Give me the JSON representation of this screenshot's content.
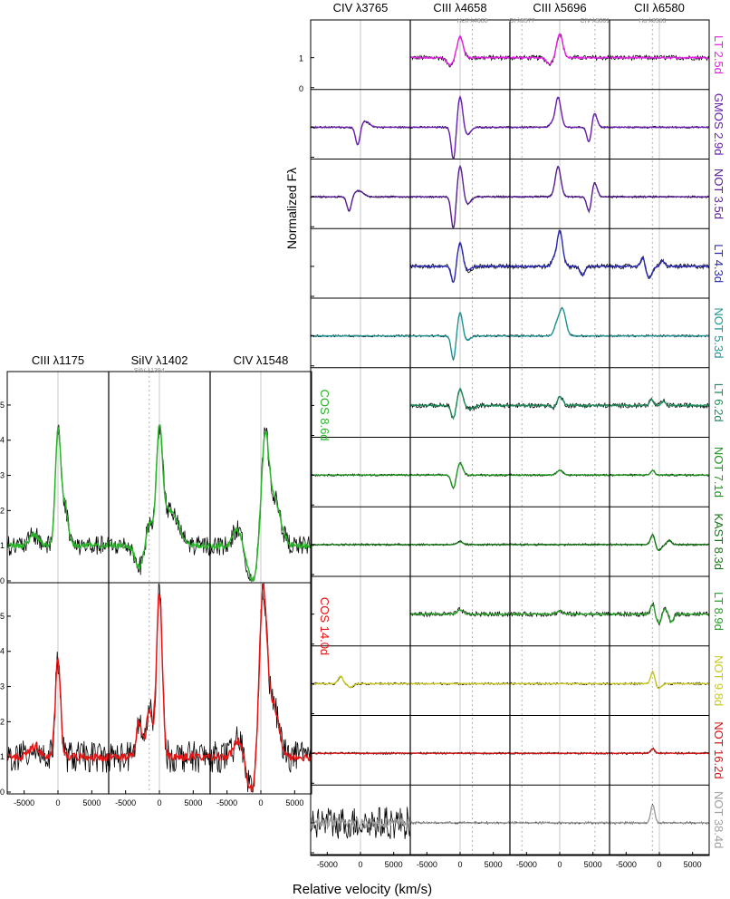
{
  "figure": {
    "xlabel": "Relative velocity (km/s)",
    "ylabel": "Normalized Fλ"
  },
  "chart_data": {
    "type": "line",
    "xlabel": "Relative velocity (km/s)",
    "ylabel": "Normalized Fλ",
    "xlim": [
      -7500,
      7500
    ],
    "xticks": [
      -5000,
      0,
      5000
    ],
    "optical": {
      "columns": [
        {
          "line": "CIV λ3765",
          "marker": ""
        },
        {
          "line": "CIII λ4658",
          "marker": "HeII λ4686"
        },
        {
          "line": "CIII λ5696",
          "marker": "OI λ5577",
          "marker2": "CIV λ5801"
        },
        {
          "line": "CII λ6580",
          "marker": "Hα λ6563"
        }
      ],
      "yticks": [
        0,
        1
      ],
      "rows": [
        {
          "label": "LT 2.5d",
          "color": "#e61ee6",
          "cols": [
            1,
            2,
            3
          ],
          "feat": [
            [],
            [
              [
                0,
                0.7,
                450
              ],
              [
                -1500,
                -0.25,
                500
              ]
            ],
            [
              [
                0,
                0.8,
                450
              ],
              [
                -1500,
                -0.2,
                500
              ]
            ],
            []
          ]
        },
        {
          "label": "GMOS 2.9d",
          "color": "#6a1fb4",
          "cols": [
            0,
            1,
            2,
            3
          ],
          "feat": [
            [
              [
                -400,
                -0.65,
                350
              ],
              [
                600,
                0.2,
                700
              ]
            ],
            [
              [
                0,
                1.05,
                380
              ],
              [
                -1000,
                -1.1,
                330
              ],
              [
                1100,
                -0.25,
                500
              ]
            ],
            [
              [
                -250,
                1.0,
                430
              ],
              [
                -1300,
                0.1,
                300
              ],
              [
                4450,
                -0.55,
                350
              ],
              [
                5200,
                0.5,
                400
              ]
            ],
            []
          ]
        },
        {
          "label": "NOT 3.5d",
          "color": "#5a1f96",
          "cols": [
            0,
            1,
            2,
            3
          ],
          "feat": [
            [
              [
                -1700,
                -0.5,
                330
              ],
              [
                -300,
                0.2,
                700
              ]
            ],
            [
              [
                0,
                1.05,
                400
              ],
              [
                -1000,
                -1.1,
                330
              ],
              [
                1100,
                -0.25,
                500
              ]
            ],
            [
              [
                -250,
                1.0,
                430
              ],
              [
                4450,
                -0.55,
                350
              ],
              [
                5200,
                0.5,
                400
              ]
            ],
            []
          ]
        },
        {
          "label": "LT 4.3d",
          "color": "#2a2ab4",
          "cols": [
            1,
            2,
            3
          ],
          "feat": [
            [],
            [
              [
                0,
                0.8,
                400
              ],
              [
                -1000,
                -0.55,
                330
              ],
              [
                1100,
                -0.15,
                500
              ]
            ],
            [
              [
                0,
                1.2,
                430
              ],
              [
                -1000,
                0.2,
                300
              ],
              [
                3400,
                -0.3,
                350
              ]
            ],
            [
              [
                -2500,
                0.3,
                300
              ],
              [
                -1500,
                -0.4,
                400
              ],
              [
                500,
                0.2,
                300
              ]
            ]
          ]
        },
        {
          "label": "NOT 5.3d",
          "color": "#1e9696",
          "cols": [
            0,
            1,
            2,
            3
          ],
          "feat": [
            [],
            [
              [
                0,
                0.8,
                380
              ],
              [
                -1000,
                -0.8,
                330
              ],
              [
                1000,
                -0.15,
                500
              ]
            ],
            [
              [
                400,
                0.9,
                500
              ],
              [
                -500,
                0.3,
                400
              ]
            ],
            []
          ]
        },
        {
          "label": "LT 6.2d",
          "color": "#1e8c5a",
          "cols": [
            1,
            2,
            3
          ],
          "feat": [
            [],
            [
              [
                0,
                0.55,
                400
              ],
              [
                -1000,
                -0.45,
                330
              ],
              [
                1500,
                -0.12,
                600
              ]
            ],
            [
              [
                0,
                0.3,
                450
              ],
              [
                -800,
                -0.1,
                400
              ]
            ],
            [
              [
                -1200,
                0.2,
                300
              ],
              [
                600,
                0.15,
                300
              ]
            ]
          ]
        },
        {
          "label": "NOT 7.1d",
          "color": "#1e961e",
          "cols": [
            0,
            1,
            2,
            3
          ],
          "feat": [
            [],
            [
              [
                0,
                0.4,
                400
              ],
              [
                -1000,
                -0.45,
                330
              ]
            ],
            [
              [
                0,
                0.15,
                450
              ]
            ],
            [
              [
                -1000,
                0.15,
                300
              ]
            ]
          ]
        },
        {
          "label": "KAST 8.3d",
          "color": "#147814",
          "cols": [
            0,
            1,
            2,
            3
          ],
          "feat": [
            [],
            [
              [
                0,
                0.1,
                400
              ]
            ],
            [],
            [
              [
                -1000,
                0.35,
                300
              ],
              [
                -100,
                -0.2,
                400
              ],
              [
                1500,
                0.15,
                300
              ]
            ]
          ]
        },
        {
          "label": "LT 8.9d",
          "color": "#28a028",
          "cols": [
            1,
            2,
            3
          ],
          "feat": [
            [],
            [
              [
                0,
                0.15,
                400
              ]
            ],
            [
              [
                0,
                0.1,
                400
              ]
            ],
            [
              [
                -1000,
                0.35,
                300
              ],
              [
                -100,
                -0.3,
                400
              ],
              [
                800,
                0.2,
                300
              ],
              [
                1800,
                -0.25,
                300
              ]
            ]
          ]
        },
        {
          "label": "NOT 9.8d",
          "color": "#c8c81e",
          "cols": [
            0,
            1,
            2,
            3
          ],
          "feat": [
            [
              [
                -3000,
                0.25,
                350
              ],
              [
                -1500,
                -0.12,
                400
              ]
            ],
            [],
            [],
            [
              [
                -1000,
                0.4,
                300
              ],
              [
                -100,
                -0.15,
                400
              ]
            ]
          ]
        },
        {
          "label": "NOT 16.2d",
          "color": "#d21414",
          "cols": [
            0,
            1,
            2,
            3
          ],
          "feat": [
            [],
            [],
            [],
            [
              [
                -1000,
                0.15,
                300
              ]
            ]
          ]
        },
        {
          "label": "NOT 38.4d",
          "color": "#a0a0a0",
          "cols": [
            0,
            1,
            2,
            3
          ],
          "feat": [
            [],
            [],
            [],
            [
              [
                -1000,
                0.6,
                300
              ]
            ]
          ]
        }
      ]
    },
    "uv": {
      "columns": [
        {
          "line": "CIII λ1175",
          "marker": ""
        },
        {
          "line": "SiIV λ1402",
          "marker": "SiIV λ1394"
        },
        {
          "line": "CIV λ1548",
          "marker": ""
        }
      ],
      "yticks": [
        0,
        1,
        2,
        3,
        4,
        5
      ],
      "ylim": [
        0,
        5.9
      ],
      "rows": [
        {
          "label": "COS  8.6d",
          "color": "#28b428",
          "feat": [
            [
              [
                0,
                3.2,
                400
              ],
              [
                1000,
                1.1,
                500
              ],
              [
                -3500,
                0.3,
                700
              ]
            ],
            [
              [
                0,
                3.0,
                450
              ],
              [
                1500,
                1.0,
                1200
              ],
              [
                -1500,
                0.6,
                450
              ],
              [
                -3000,
                -0.6,
                600
              ]
            ],
            [
              [
                600,
                2.9,
                550
              ],
              [
                2000,
                1.3,
                900
              ],
              [
                -1200,
                -1.0,
                800
              ],
              [
                -3500,
                0.5,
                600
              ]
            ]
          ]
        },
        {
          "label": "COS 14.0d",
          "color": "#e61414",
          "feat": [
            [
              [
                0,
                2.8,
                380
              ],
              [
                -3500,
                0.3,
                700
              ]
            ],
            [
              [
                0,
                4.7,
                420
              ],
              [
                -1500,
                1.3,
                450
              ],
              [
                -3000,
                1.0,
                400
              ]
            ],
            [
              [
                300,
                4.7,
                550
              ],
              [
                1800,
                1.5,
                800
              ],
              [
                -1300,
                -1.0,
                800
              ],
              [
                -3200,
                0.5,
                700
              ]
            ]
          ]
        }
      ]
    }
  }
}
